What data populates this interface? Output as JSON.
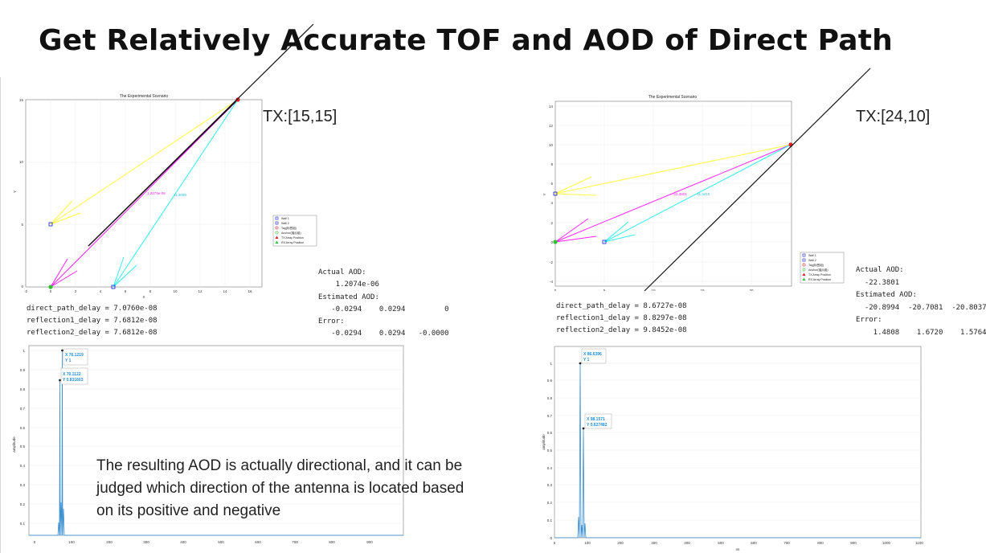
{
  "slide": {
    "title": "Get Relatively Accurate TOF and AOD of Direct Path",
    "note": "The resulting AOD is actually directional, and it can be judged which direction of the antenna is located based on its positive and negative"
  },
  "left": {
    "tx_label": "TX:[15,15]",
    "scenario": {
      "title": "The Experimental Scenario",
      "xlabel": "X",
      "ylabel": "Y",
      "xticks": [
        "-2",
        "0",
        "2",
        "4",
        "6",
        "8",
        "10",
        "12",
        "14",
        "16"
      ],
      "yticks": [
        "0",
        "5",
        "10",
        "15"
      ],
      "path_labels": [
        "1.2074e-06",
        "11.3099"
      ],
      "legend": [
        "Wall 1",
        "Wall 2",
        "Tag(标签组)",
        "Anchor(锚点组)",
        "TX Array Position",
        "RX Array Position"
      ]
    },
    "delays": [
      "direct_path_delay = 7.0760e-08",
      "reflection1_delay = 7.6812e-08",
      "reflection2_delay = 7.6812e-08"
    ],
    "aod": {
      "actual_label": "Actual AOD:",
      "actual_values": "    1.2074e-06",
      "estimated_label": "Estimated AOD:",
      "estimated_values": "   -0.0294    0.0294         0",
      "error_label": "Error:",
      "error_values": "   -0.0294    0.0294   -0.0000"
    },
    "response": {
      "ylabel": "amplitude",
      "yticks": [
        "0.1",
        "0.2",
        "0.3",
        "0.4",
        "0.5",
        "0.6",
        "0.7",
        "0.8",
        "0.9",
        "1"
      ],
      "xticks": [
        "0",
        "100",
        "200",
        "300",
        "400",
        "500",
        "600",
        "700",
        "800",
        "900"
      ],
      "tip1": [
        "X 76.1219",
        "Y 1"
      ],
      "tip2": [
        "X 70.1122",
        "Y 0.831603"
      ]
    }
  },
  "right": {
    "tx_label": "TX:[24,10]",
    "scenario": {
      "title": "The Experimental Scenario",
      "xlabel": "X",
      "ylabel": "Y",
      "xticks": [
        "0",
        "5",
        "10",
        "15",
        "20"
      ],
      "yticks": [
        "-4",
        "-2",
        "0",
        "2",
        "4",
        "6",
        "8",
        "10",
        "12",
        "14"
      ],
      "path_labels": [
        "-22.3801",
        "-11.3415"
      ],
      "legend": [
        "Wall 1",
        "Wall 2",
        "Tag(标签组)",
        "Anchor(锚点组)",
        "TX Array Position",
        "RX Array Position"
      ]
    },
    "delays": [
      "direct_path_delay = 8.6727e-08",
      "reflection1_delay = 8.8297e-08",
      "reflection2_delay = 9.8452e-08"
    ],
    "aod": {
      "actual_label": "Actual AOD:",
      "actual_values": "  -22.3801",
      "estimated_label": "Estimated AOD:",
      "estimated_values": "  -20.8994  -20.7081  -20.8037",
      "error_label": "Error:",
      "error_values": "    1.4808    1.6720    1.5764"
    },
    "response": {
      "ylabel": "amplitude",
      "yticks": [
        "0",
        "0.1",
        "0.2",
        "0.3",
        "0.4",
        "0.5",
        "0.6",
        "0.7",
        "0.8",
        "0.9",
        "1"
      ],
      "xticks": [
        "0",
        "100",
        "200",
        "300",
        "400",
        "500",
        "600",
        "700",
        "800",
        "900",
        "1000",
        "1100"
      ],
      "xlabel": "ns",
      "tip1": [
        "X 86.6396",
        "Y 1"
      ],
      "tip2": [
        "X 98.1571",
        "Y 0.627482"
      ]
    }
  },
  "colors": {
    "direct": "#7a007a",
    "yellow_path": "#ffff3c",
    "magenta_path": "#ff22ff",
    "cyan_path": "#2ef0f0",
    "response_line": "#3a8fd0",
    "tip_text": "#1f8de0"
  }
}
